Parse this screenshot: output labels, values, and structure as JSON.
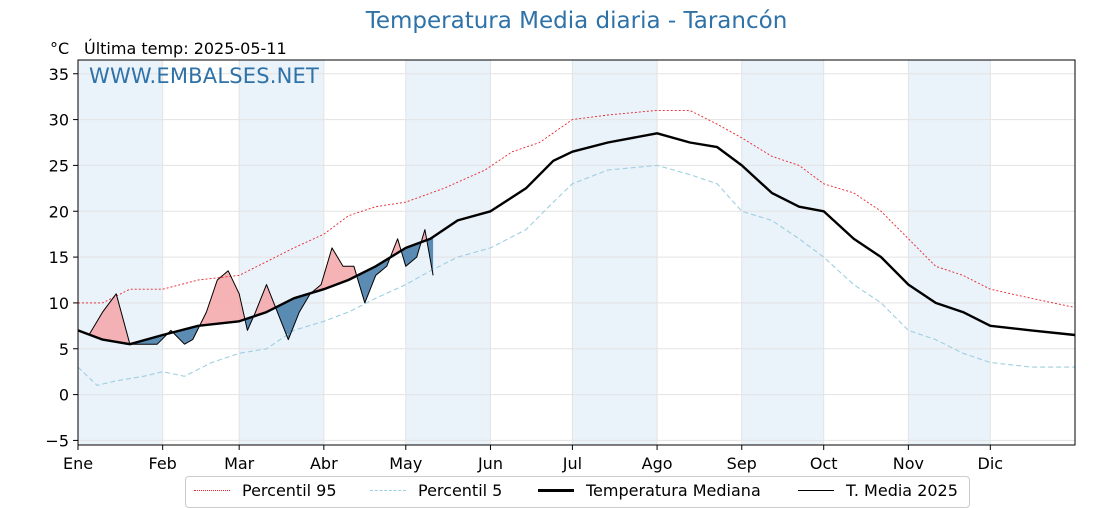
{
  "title": "Temperatura Media diaria - Tarancón",
  "unit": "°C",
  "last_temp": "Última temp: 2025-05-11",
  "watermark": "WWW.EMBALSES.NET",
  "colors": {
    "title": "#2e72a8",
    "p95": "#e8232b",
    "p5": "#9ecfe0",
    "median": "#000000",
    "year": "#000000",
    "fill_above": "#f4a6a8",
    "fill_below": "#4a7fab",
    "band": "#eaf2fa"
  },
  "legend": {
    "p95": "Percentil 95",
    "p5": "Percentil 5",
    "median": "Temperatura Mediana",
    "year": "T. Media 2025"
  },
  "chart_data": {
    "type": "line",
    "x_unit": "day of year",
    "xlim": [
      1,
      366
    ],
    "ylim": [
      -5.5,
      36.5
    ],
    "y_ticks": [
      -5,
      0,
      5,
      10,
      15,
      20,
      25,
      30,
      35
    ],
    "months": [
      {
        "label": "Ene",
        "day": 1
      },
      {
        "label": "Feb",
        "day": 32
      },
      {
        "label": "Mar",
        "day": 60
      },
      {
        "label": "Abr",
        "day": 91
      },
      {
        "label": "May",
        "day": 121
      },
      {
        "label": "Jun",
        "day": 152
      },
      {
        "label": "Jul",
        "day": 182
      },
      {
        "label": "Ago",
        "day": 213
      },
      {
        "label": "Sep",
        "day": 244
      },
      {
        "label": "Oct",
        "day": 274
      },
      {
        "label": "Nov",
        "day": 305
      },
      {
        "label": "Dic",
        "day": 335
      }
    ],
    "shaded_month_bands": [
      [
        1,
        32
      ],
      [
        60,
        91
      ],
      [
        121,
        152
      ],
      [
        182,
        213
      ],
      [
        244,
        274
      ],
      [
        305,
        335
      ]
    ],
    "grid": true,
    "legend_position": "bottom",
    "series": [
      {
        "name": "Percentil 95",
        "style": "dotted",
        "points": [
          [
            1,
            10
          ],
          [
            10,
            10
          ],
          [
            20,
            11.5
          ],
          [
            32,
            11.5
          ],
          [
            45,
            12.5
          ],
          [
            60,
            13
          ],
          [
            70,
            14.5
          ],
          [
            80,
            16
          ],
          [
            91,
            17.5
          ],
          [
            100,
            19.5
          ],
          [
            110,
            20.5
          ],
          [
            121,
            21
          ],
          [
            135,
            22.5
          ],
          [
            150,
            24.5
          ],
          [
            160,
            26.5
          ],
          [
            170,
            27.5
          ],
          [
            182,
            30
          ],
          [
            195,
            30.5
          ],
          [
            213,
            31
          ],
          [
            225,
            31
          ],
          [
            235,
            29.5
          ],
          [
            244,
            28
          ],
          [
            255,
            26
          ],
          [
            265,
            25
          ],
          [
            274,
            23
          ],
          [
            285,
            22
          ],
          [
            295,
            20
          ],
          [
            305,
            17
          ],
          [
            315,
            14
          ],
          [
            325,
            13
          ],
          [
            335,
            11.5
          ],
          [
            350,
            10.5
          ],
          [
            366,
            9.5
          ]
        ]
      },
      {
        "name": "Percentil 5",
        "style": "dashed",
        "points": [
          [
            1,
            3
          ],
          [
            8,
            1
          ],
          [
            15,
            1.5
          ],
          [
            25,
            2
          ],
          [
            32,
            2.5
          ],
          [
            40,
            2
          ],
          [
            50,
            3.5
          ],
          [
            60,
            4.5
          ],
          [
            70,
            5
          ],
          [
            80,
            7
          ],
          [
            91,
            8
          ],
          [
            100,
            9
          ],
          [
            110,
            10.5
          ],
          [
            121,
            12
          ],
          [
            130,
            13.5
          ],
          [
            140,
            15
          ],
          [
            152,
            16
          ],
          [
            165,
            18
          ],
          [
            175,
            21
          ],
          [
            182,
            23
          ],
          [
            195,
            24.5
          ],
          [
            213,
            25
          ],
          [
            225,
            24
          ],
          [
            235,
            23
          ],
          [
            244,
            20
          ],
          [
            255,
            19
          ],
          [
            265,
            17
          ],
          [
            274,
            15
          ],
          [
            285,
            12
          ],
          [
            295,
            10
          ],
          [
            305,
            7
          ],
          [
            315,
            6
          ],
          [
            325,
            4.5
          ],
          [
            335,
            3.5
          ],
          [
            350,
            3
          ],
          [
            366,
            3
          ]
        ]
      },
      {
        "name": "Temperatura Mediana",
        "style": "solid-bold",
        "points": [
          [
            1,
            7
          ],
          [
            10,
            6
          ],
          [
            20,
            5.5
          ],
          [
            32,
            6.5
          ],
          [
            45,
            7.5
          ],
          [
            60,
            8
          ],
          [
            70,
            9
          ],
          [
            80,
            10.5
          ],
          [
            91,
            11.5
          ],
          [
            100,
            12.5
          ],
          [
            110,
            14
          ],
          [
            121,
            16
          ],
          [
            130,
            17
          ],
          [
            140,
            19
          ],
          [
            152,
            20
          ],
          [
            165,
            22.5
          ],
          [
            175,
            25.5
          ],
          [
            182,
            26.5
          ],
          [
            195,
            27.5
          ],
          [
            213,
            28.5
          ],
          [
            225,
            27.5
          ],
          [
            235,
            27
          ],
          [
            244,
            25
          ],
          [
            255,
            22
          ],
          [
            265,
            20.5
          ],
          [
            274,
            20
          ],
          [
            285,
            17
          ],
          [
            295,
            15
          ],
          [
            305,
            12
          ],
          [
            315,
            10
          ],
          [
            325,
            9
          ],
          [
            335,
            7.5
          ],
          [
            350,
            7
          ],
          [
            366,
            6.5
          ]
        ]
      },
      {
        "name": "T. Media 2025",
        "style": "solid-thin",
        "points": [
          [
            1,
            7
          ],
          [
            5,
            6.5
          ],
          [
            10,
            9
          ],
          [
            15,
            11
          ],
          [
            20,
            5.5
          ],
          [
            25,
            5.5
          ],
          [
            30,
            5.5
          ],
          [
            35,
            7
          ],
          [
            40,
            5.5
          ],
          [
            43,
            6
          ],
          [
            48,
            9
          ],
          [
            52,
            12.5
          ],
          [
            56,
            13.5
          ],
          [
            60,
            11
          ],
          [
            63,
            7
          ],
          [
            66,
            9
          ],
          [
            70,
            12
          ],
          [
            74,
            9
          ],
          [
            78,
            6
          ],
          [
            82,
            9
          ],
          [
            86,
            11
          ],
          [
            90,
            12
          ],
          [
            94,
            16
          ],
          [
            98,
            14
          ],
          [
            102,
            14
          ],
          [
            106,
            10
          ],
          [
            110,
            13
          ],
          [
            114,
            14
          ],
          [
            118,
            17
          ],
          [
            121,
            14
          ],
          [
            125,
            15
          ],
          [
            128,
            18
          ],
          [
            131,
            13
          ]
        ]
      }
    ]
  }
}
